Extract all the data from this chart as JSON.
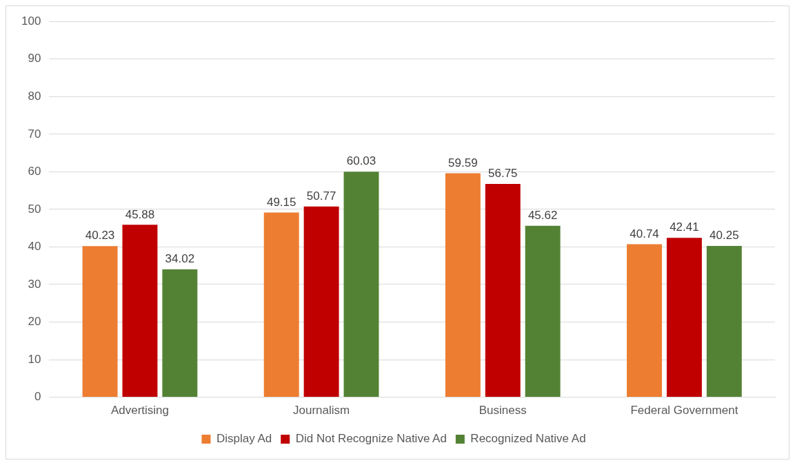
{
  "chart_data": {
    "type": "bar",
    "categories": [
      "Advertising",
      "Journalism",
      "Business",
      "Federal Government"
    ],
    "series": [
      {
        "name": "Display Ad",
        "color": "#ed7d31",
        "values": [
          40.23,
          49.15,
          59.59,
          40.74
        ]
      },
      {
        "name": "Did Not Recognize Native Ad",
        "color": "#c00000",
        "values": [
          45.88,
          50.77,
          56.75,
          42.41
        ]
      },
      {
        "name": "Recognized Native Ad",
        "color": "#548235",
        "values": [
          34.02,
          60.03,
          45.62,
          40.25
        ]
      }
    ],
    "ylim": [
      0,
      100
    ],
    "yticks": [
      0,
      10,
      20,
      30,
      40,
      50,
      60,
      70,
      80,
      90,
      100
    ],
    "grid": "y",
    "legend": "bottom",
    "data_labels": true
  }
}
